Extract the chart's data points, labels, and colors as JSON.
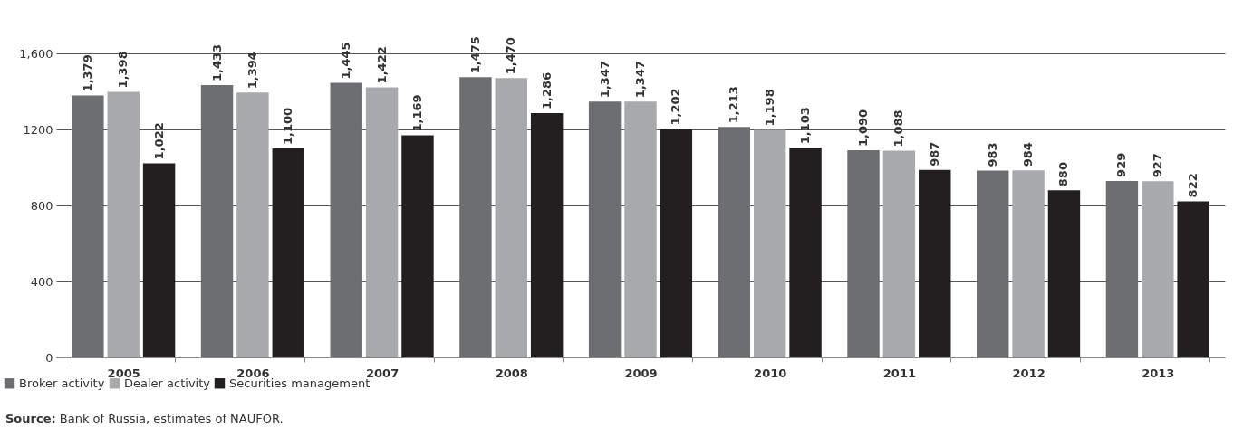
{
  "chart_data": {
    "type": "bar",
    "categories": [
      "2005",
      "2006",
      "2007",
      "2008",
      "2009",
      "2010",
      "2011",
      "2012",
      "2013"
    ],
    "series": [
      {
        "name": "Broker activity",
        "color": "#6d6e71",
        "values": [
          1379,
          1433,
          1445,
          1475,
          1347,
          1213,
          1090,
          983,
          929
        ],
        "value_labels": [
          "1,379",
          "1,433",
          "1,445",
          "1,475",
          "1,347",
          "1,213",
          "1,090",
          "983",
          "929"
        ]
      },
      {
        "name": "Dealer activity",
        "color": "#a7a9ac",
        "values": [
          1398,
          1394,
          1422,
          1470,
          1347,
          1198,
          1088,
          984,
          927
        ],
        "value_labels": [
          "1,398",
          "1,394",
          "1,422",
          "1,470",
          "1,347",
          "1,198",
          "1,088",
          "984",
          "927"
        ]
      },
      {
        "name": "Securities management",
        "color": "#231f20",
        "values": [
          1022,
          1100,
          1169,
          1286,
          1202,
          1103,
          987,
          880,
          822
        ],
        "value_labels": [
          "1,022",
          "1,100",
          "1,169",
          "1,286",
          "1,202",
          "1,103",
          "987",
          "880",
          "822"
        ]
      }
    ],
    "ylim": [
      0,
      1600
    ],
    "yticks": [
      0,
      400,
      800,
      1200,
      {
        "value": 1600,
        "label": "1,600"
      }
    ],
    "grid": "y",
    "legend": "bottom left",
    "annotations": [
      "Source: Bank of Russia, estimates of NAUFOR."
    ]
  }
}
